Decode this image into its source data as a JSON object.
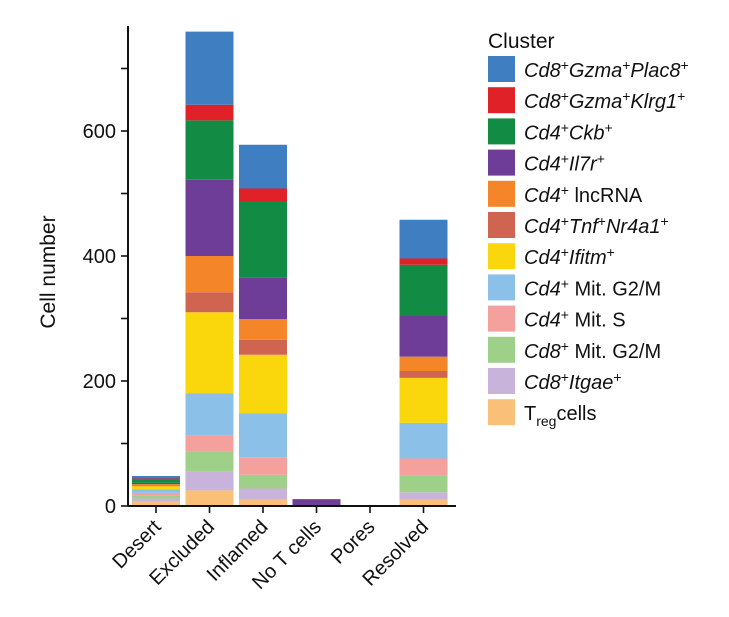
{
  "chart_data": {
    "type": "bar",
    "stacked": true,
    "ylabel": "Cell number",
    "xlabel": "",
    "ylim": [
      0,
      760
    ],
    "yticks": [
      0,
      200,
      400,
      600
    ],
    "categories": [
      "Desert",
      "Excluded",
      "Inflamed",
      "No T cells",
      "Pores",
      "Resolved"
    ],
    "legend_title": "Cluster",
    "legend_position": "right",
    "series": [
      {
        "key": "treg",
        "color": "#FBC077",
        "label_parts": [
          {
            "t": "T",
            "s": "n"
          },
          {
            "t": "reg",
            "s": "sub"
          },
          {
            "t": "cells",
            "s": "n"
          }
        ],
        "values": [
          7,
          25,
          10,
          1,
          0,
          10
        ]
      },
      {
        "key": "cd8_itgae",
        "color": "#C8B3DA",
        "label_parts": [
          {
            "t": "Cd8",
            "s": "i"
          },
          {
            "t": "+",
            "s": "sup"
          },
          {
            "t": "Itgae",
            "s": "i"
          },
          {
            "t": "+",
            "s": "sup"
          }
        ],
        "values": [
          5,
          30,
          18,
          0,
          0,
          12
        ]
      },
      {
        "key": "cd8_g2m",
        "color": "#9FD08A",
        "label_parts": [
          {
            "t": "Cd8",
            "s": "i"
          },
          {
            "t": "+",
            "s": "sup"
          },
          {
            "t": " Mit. G2/M",
            "s": "n"
          }
        ],
        "values": [
          5,
          32,
          22,
          0,
          0,
          27
        ]
      },
      {
        "key": "cd4_s",
        "color": "#F4A09C",
        "label_parts": [
          {
            "t": "Cd4",
            "s": "i"
          },
          {
            "t": "+",
            "s": "sup"
          },
          {
            "t": " Mit. S",
            "s": "n"
          }
        ],
        "values": [
          4,
          26,
          28,
          0,
          0,
          27
        ]
      },
      {
        "key": "cd4_g2m",
        "color": "#8BC1E9",
        "label_parts": [
          {
            "t": "Cd4",
            "s": "i"
          },
          {
            "t": "+",
            "s": "sup"
          },
          {
            "t": " Mit. G2/M",
            "s": "n"
          }
        ],
        "values": [
          6,
          67,
          70,
          0,
          0,
          57
        ]
      },
      {
        "key": "cd4_ifitm",
        "color": "#FAD70C",
        "label_parts": [
          {
            "t": "Cd4",
            "s": "i"
          },
          {
            "t": "+",
            "s": "sup"
          },
          {
            "t": "Ifitm",
            "s": "i"
          },
          {
            "t": "+",
            "s": "sup"
          }
        ],
        "values": [
          5,
          130,
          94,
          0,
          0,
          72
        ]
      },
      {
        "key": "cd4_tnf",
        "color": "#CF6451",
        "label_parts": [
          {
            "t": "Cd4",
            "s": "i"
          },
          {
            "t": "+",
            "s": "sup"
          },
          {
            "t": "Tnf",
            "s": "i"
          },
          {
            "t": "+",
            "s": "sup"
          },
          {
            "t": "Nr4a1",
            "s": "i"
          },
          {
            "t": "+",
            "s": "sup"
          }
        ],
        "values": [
          1,
          32,
          24,
          0,
          0,
          11
        ]
      },
      {
        "key": "cd4_lncrna",
        "color": "#F58529",
        "label_parts": [
          {
            "t": "Cd4",
            "s": "i"
          },
          {
            "t": "+",
            "s": "sup"
          },
          {
            "t": " lncRNA",
            "s": "n"
          }
        ],
        "values": [
          2,
          58,
          33,
          0,
          0,
          23
        ]
      },
      {
        "key": "cd4_il7r",
        "color": "#6E3D98",
        "label_parts": [
          {
            "t": "Cd4",
            "s": "i"
          },
          {
            "t": "+",
            "s": "sup"
          },
          {
            "t": "Il7r",
            "s": "i"
          },
          {
            "t": "+",
            "s": "sup"
          }
        ],
        "values": [
          2,
          122,
          66,
          10,
          1,
          65
        ]
      },
      {
        "key": "cd4_ckb",
        "color": "#128C44",
        "label_parts": [
          {
            "t": "Cd4",
            "s": "i"
          },
          {
            "t": "+",
            "s": "sup"
          },
          {
            "t": "Ckb",
            "s": "i"
          },
          {
            "t": "+",
            "s": "sup"
          }
        ],
        "values": [
          6,
          95,
          123,
          0,
          0,
          82
        ]
      },
      {
        "key": "cd8_klrg1",
        "color": "#E02127",
        "label_parts": [
          {
            "t": "Cd8",
            "s": "i"
          },
          {
            "t": "+",
            "s": "sup"
          },
          {
            "t": "Gzma",
            "s": "i"
          },
          {
            "t": "+",
            "s": "sup"
          },
          {
            "t": "Klrg1",
            "s": "i"
          },
          {
            "t": "+",
            "s": "sup"
          }
        ],
        "values": [
          1,
          25,
          20,
          0,
          0,
          10
        ]
      },
      {
        "key": "cd8_plac8",
        "color": "#3F7FC1",
        "label_parts": [
          {
            "t": "Cd8",
            "s": "i"
          },
          {
            "t": "+",
            "s": "sup"
          },
          {
            "t": "Gzma",
            "s": "i"
          },
          {
            "t": "+",
            "s": "sup"
          },
          {
            "t": "Plac8",
            "s": "i"
          },
          {
            "t": "+",
            "s": "sup"
          }
        ],
        "values": [
          4,
          117,
          70,
          0,
          0,
          62
        ]
      }
    ],
    "legend_order": [
      "cd8_plac8",
      "cd8_klrg1",
      "cd4_ckb",
      "cd4_il7r",
      "cd4_lncrna",
      "cd4_tnf",
      "cd4_ifitm",
      "cd4_g2m",
      "cd4_s",
      "cd8_g2m",
      "cd8_itgae",
      "treg"
    ]
  }
}
